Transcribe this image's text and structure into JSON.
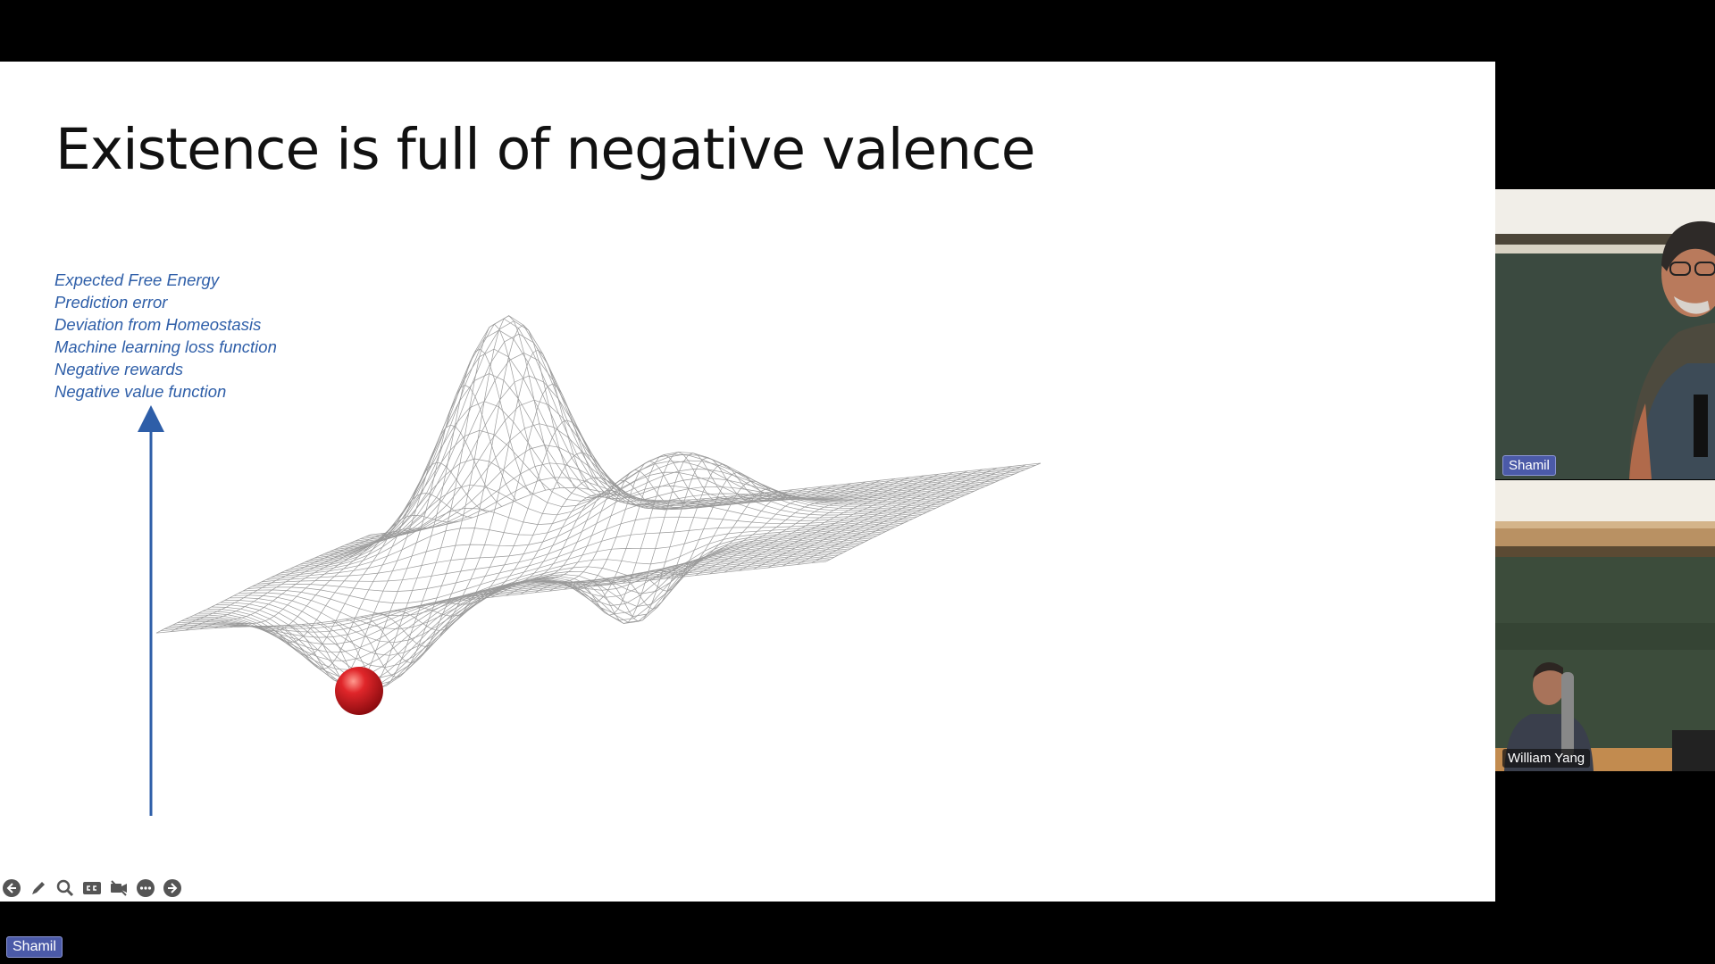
{
  "slide": {
    "title": "Existence is full of negative valence",
    "axis_labels": [
      "Expected Free Energy",
      "Prediction error",
      "Deviation from Homeostasis",
      "Machine learning loss function",
      "Negative rewards",
      "Negative value function"
    ],
    "colors": {
      "label_blue": "#2e5ea8",
      "ball_red": "#c4161c"
    }
  },
  "slide_controls": [
    {
      "name": "previous-slide",
      "icon": "arrow-left-circle-icon"
    },
    {
      "name": "pen",
      "icon": "pen-icon"
    },
    {
      "name": "zoom",
      "icon": "magnifier-icon"
    },
    {
      "name": "captions",
      "icon": "cc-icon"
    },
    {
      "name": "camera",
      "icon": "camera-off-icon"
    },
    {
      "name": "more",
      "icon": "more-icon"
    },
    {
      "name": "next-slide",
      "icon": "arrow-right-circle-icon"
    }
  ],
  "participants": [
    {
      "name": "Shamil"
    },
    {
      "name": "William Yang"
    }
  ],
  "active_speaker": "Shamil"
}
